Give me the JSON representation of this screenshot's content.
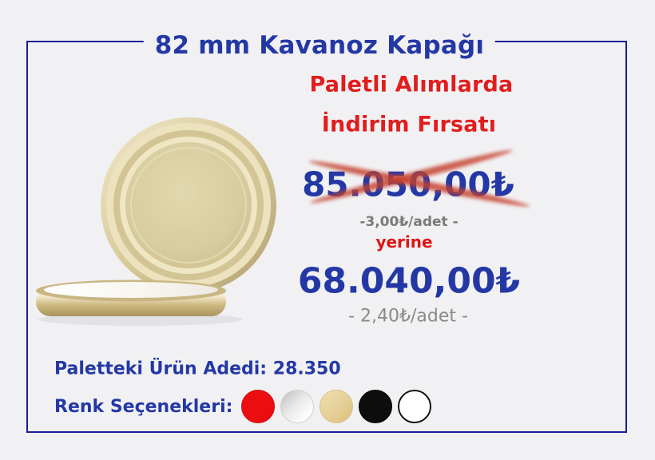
{
  "page": {
    "title": "82 mm Kavanoz Kapağı",
    "background_color": "#f1f1f3",
    "border_color": "#1c1b96",
    "accent_blue": "#2438a5"
  },
  "promo": {
    "line1": "Paletli Alımlarda",
    "line2": "İndirim Fırsatı",
    "color": "#e11d1d"
  },
  "pricing": {
    "old_price": "85.050,00₺",
    "old_unit_price": "-3,00₺/adet -",
    "instead_label": "yerine",
    "new_price": "68.040,00₺",
    "new_unit_price": "- 2,40₺/adet -",
    "strikethrough_color": "#c5402c"
  },
  "pallet": {
    "label": "Paletteki Ürün Adedi:",
    "value": "28.350"
  },
  "color_options": {
    "label": "Renk Seçenekleri:",
    "swatches": [
      {
        "name": "red",
        "color": "#ea0e10"
      },
      {
        "name": "silver",
        "color": "#d9d9d9"
      },
      {
        "name": "gold",
        "color": "#e7d096"
      },
      {
        "name": "black",
        "color": "#0d0d0d"
      },
      {
        "name": "white",
        "color": "#ffffff"
      }
    ]
  },
  "product_image": {
    "description": "Two gold metal jar lids, one upright showing the top face and one lying flat showing the side rim",
    "gold_color": "#d8cda0"
  }
}
